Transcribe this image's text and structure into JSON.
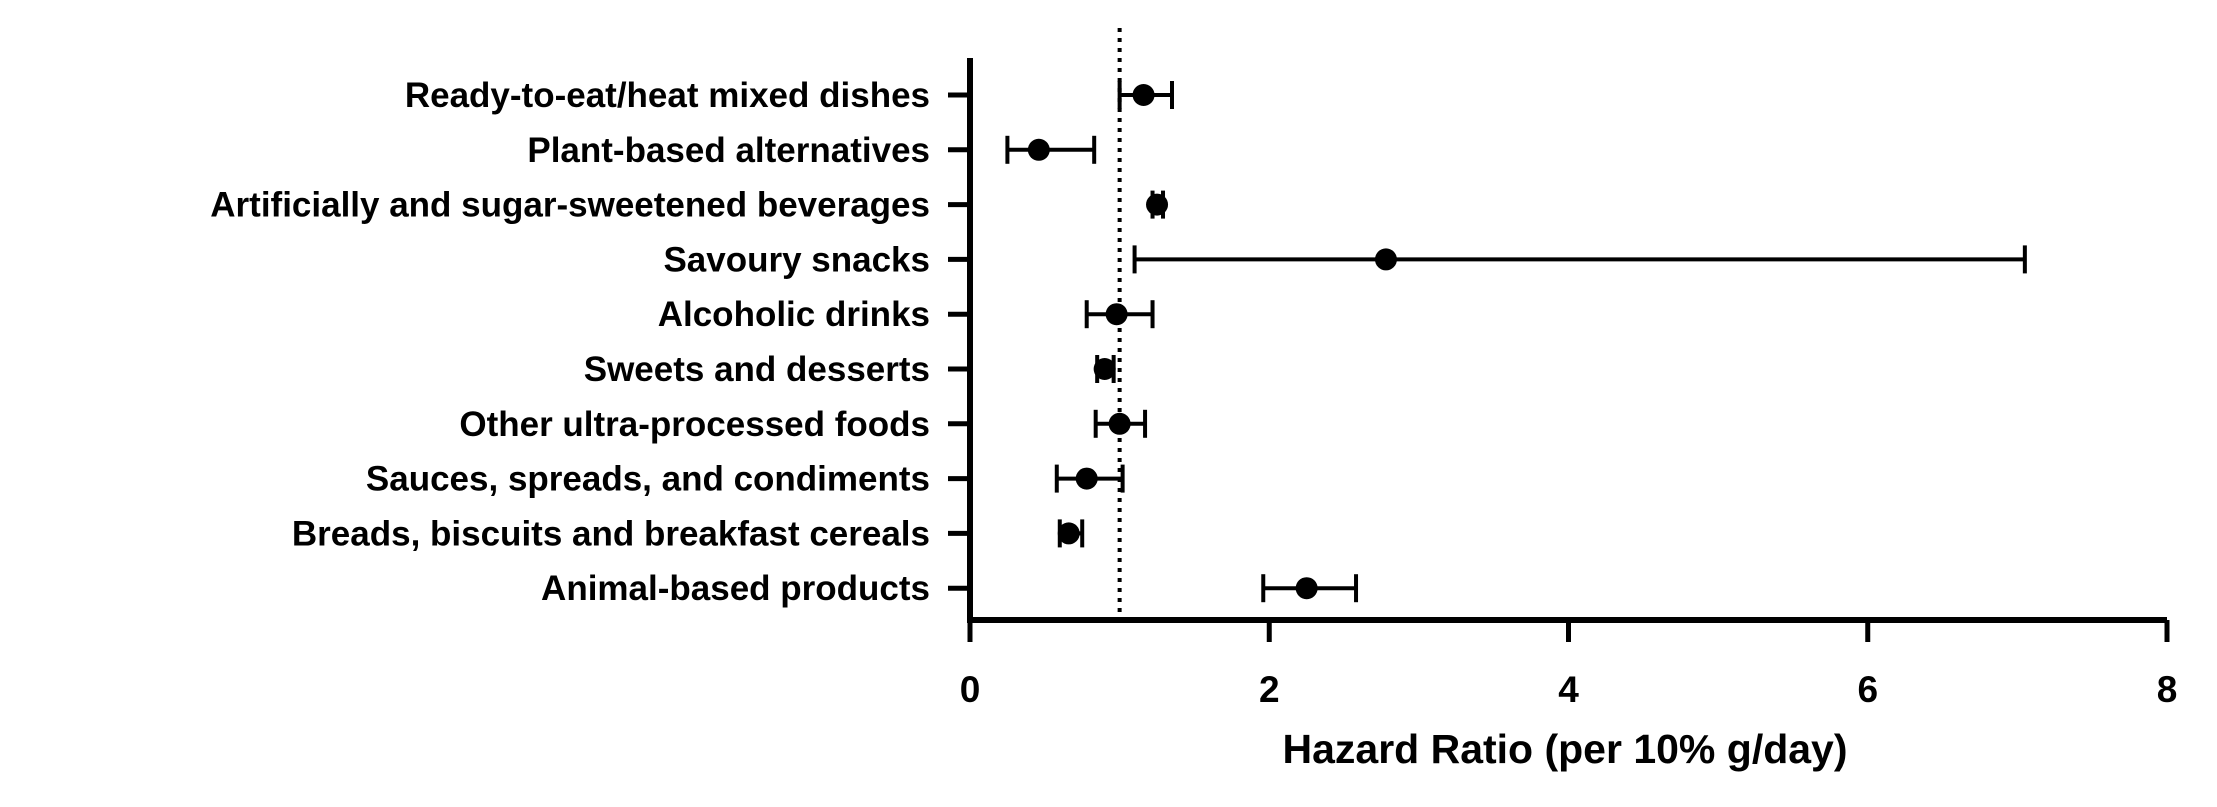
{
  "chart_data": {
    "type": "forest",
    "title": "",
    "xlabel": "Hazard Ratio (per 10% g/day)",
    "ylabel": "",
    "xlim": [
      0,
      8
    ],
    "xticks": [
      0,
      2,
      4,
      6,
      8
    ],
    "reference_line": {
      "value": 1,
      "style": "dotted"
    },
    "grid": false,
    "legend": "none",
    "categories": [
      "Ready-to-eat/heat mixed dishes",
      "Plant-based alternatives",
      "Artificially and sugar-sweetened beverages",
      "Savoury snacks",
      "Alcoholic drinks",
      "Sweets and desserts",
      "Other ultra-processed foods",
      "Sauces, spreads, and condiments",
      "Breads, biscuits and breakfast cereals",
      "Animal-based products"
    ],
    "estimate": [
      1.16,
      0.46,
      1.25,
      2.78,
      0.98,
      0.9,
      1.0,
      0.78,
      0.66,
      2.25
    ],
    "ci_lower": [
      1.0,
      0.25,
      1.22,
      1.1,
      0.78,
      0.85,
      0.84,
      0.58,
      0.6,
      1.96
    ],
    "ci_upper": [
      1.35,
      0.83,
      1.29,
      7.05,
      1.22,
      0.96,
      1.17,
      1.02,
      0.75,
      2.58
    ],
    "colors": {
      "marks": "#000000",
      "background": "#ffffff"
    }
  }
}
